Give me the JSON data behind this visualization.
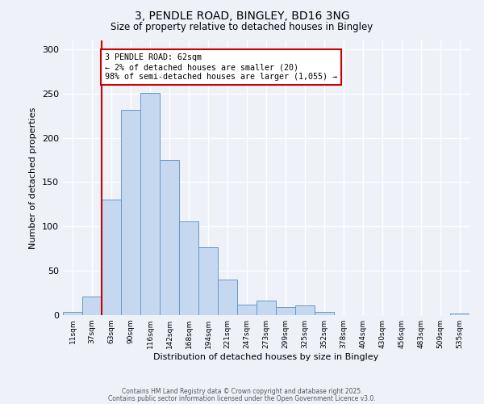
{
  "title1": "3, PENDLE ROAD, BINGLEY, BD16 3NG",
  "title2": "Size of property relative to detached houses in Bingley",
  "xlabel": "Distribution of detached houses by size in Bingley",
  "ylabel": "Number of detached properties",
  "bin_labels": [
    "11sqm",
    "37sqm",
    "63sqm",
    "90sqm",
    "116sqm",
    "142sqm",
    "168sqm",
    "194sqm",
    "221sqm",
    "247sqm",
    "273sqm",
    "299sqm",
    "325sqm",
    "352sqm",
    "378sqm",
    "404sqm",
    "430sqm",
    "456sqm",
    "483sqm",
    "509sqm",
    "535sqm"
  ],
  "bar_values": [
    4,
    21,
    130,
    232,
    251,
    175,
    106,
    77,
    40,
    12,
    16,
    9,
    11,
    4,
    0,
    0,
    0,
    0,
    0,
    0,
    2
  ],
  "bar_color": "#c5d8f0",
  "bar_edge_color": "#6699cc",
  "vline_color": "#cc0000",
  "annotation_title": "3 PENDLE ROAD: 62sqm",
  "annotation_line1": "← 2% of detached houses are smaller (20)",
  "annotation_line2": "98% of semi-detached houses are larger (1,055) →",
  "annotation_box_color": "#cc0000",
  "ylim": [
    0,
    310
  ],
  "yticks": [
    0,
    50,
    100,
    150,
    200,
    250,
    300
  ],
  "footer1": "Contains HM Land Registry data © Crown copyright and database right 2025.",
  "footer2": "Contains public sector information licensed under the Open Government Licence v3.0.",
  "background_color": "#eef2f8"
}
